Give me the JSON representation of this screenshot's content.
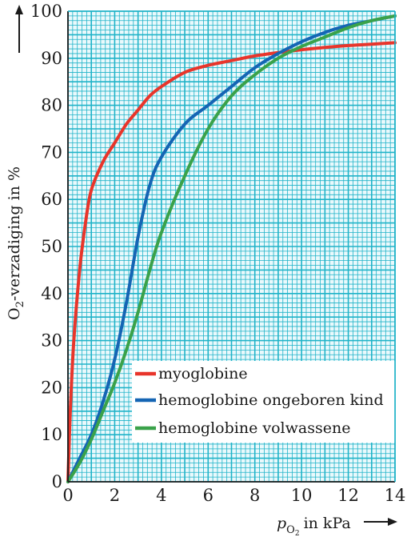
{
  "chart_data": {
    "type": "line",
    "ylabel": "O",
    "ylabel_sub": "2",
    "ylabel_rest": "-verzadiging in %",
    "xlabel_p": "p",
    "xlabel_sub1": "O",
    "xlabel_sub2": "2",
    "xlabel_rest": "in kPa",
    "xlim": [
      0,
      14
    ],
    "ylim": [
      0,
      100
    ],
    "xticks": [
      "0",
      "2",
      "4",
      "6",
      "8",
      "10",
      "12",
      "14"
    ],
    "yticks": [
      "0",
      "10",
      "20",
      "30",
      "40",
      "50",
      "60",
      "70",
      "80",
      "90",
      "100"
    ],
    "grid": true,
    "grid_color": "#1fb3c8",
    "legend_position": "lower-right",
    "series": [
      {
        "name": "myoglobine",
        "color": "#e8352b",
        "x": [
          0,
          0.1,
          0.25,
          0.5,
          0.75,
          1.0,
          1.5,
          2.0,
          2.5,
          3.0,
          3.5,
          4.0,
          5.0,
          6.0,
          7.0,
          8.0,
          9.0,
          10.0,
          11.0,
          12.0,
          13.0,
          14.0
        ],
        "y": [
          0,
          15,
          30,
          45,
          55,
          62,
          68,
          72,
          76,
          79,
          82,
          84,
          87,
          88.5,
          89.5,
          90.5,
          91.2,
          91.8,
          92.3,
          92.7,
          93.0,
          93.3
        ]
      },
      {
        "name": "hemoglobine ongeboren kind",
        "color": "#1565b4",
        "x": [
          0,
          0.5,
          1.0,
          1.5,
          2.0,
          2.5,
          3.0,
          3.5,
          4.0,
          5.0,
          6.0,
          7.0,
          8.0,
          9.0,
          10.0,
          11.0,
          12.0,
          13.0,
          14.0
        ],
        "y": [
          0,
          5,
          10,
          17,
          26,
          38,
          52,
          63,
          69,
          76,
          80,
          84,
          88,
          91,
          93.5,
          95.5,
          97,
          98,
          99
        ]
      },
      {
        "name": "hemoglobine volwassene",
        "color": "#3aa24a",
        "x": [
          0,
          0.5,
          1.0,
          1.5,
          2.0,
          2.5,
          3.0,
          3.5,
          4.0,
          5.0,
          6.0,
          7.0,
          8.0,
          9.0,
          10.0,
          11.0,
          12.0,
          13.0,
          14.0
        ],
        "y": [
          0,
          4,
          9,
          15,
          21,
          28,
          36,
          45,
          53,
          65,
          75,
          82,
          86.5,
          90,
          92.5,
          94.5,
          96.5,
          98,
          99
        ]
      }
    ]
  }
}
